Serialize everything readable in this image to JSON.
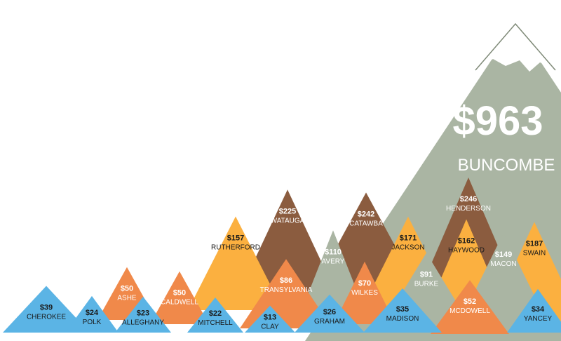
{
  "chart_data": {
    "type": "bar",
    "title": "",
    "xlabel": "",
    "ylabel": "",
    "categories": [
      "BUNCOMBE",
      "HENDERSON",
      "CATAWBA",
      "WATAUGA",
      "SWAIN",
      "JACKSON",
      "HAYWOOD",
      "RUTHERFORD",
      "MACON",
      "AVERY",
      "BURKE",
      "TRANSYLVANIA",
      "WILKES",
      "MCDOWELL",
      "ASHE",
      "CALDWELL",
      "CHEROKEE",
      "MADISON",
      "YANCEY",
      "GRAHAM",
      "POLK",
      "ALLEGHANY",
      "MITCHELL",
      "CLAY"
    ],
    "values": [
      963,
      246,
      242,
      225,
      187,
      171,
      162,
      157,
      149,
      110,
      91,
      86,
      70,
      52,
      50,
      50,
      39,
      35,
      34,
      26,
      24,
      23,
      22,
      13
    ],
    "value_labels": [
      "$963",
      "$246",
      "$242",
      "$225",
      "$187",
      "$171",
      "$162",
      "$157",
      "$149",
      "$110",
      "$91",
      "$86",
      "$70",
      "$52",
      "$50",
      "$50",
      "$39",
      "$35",
      "$34",
      "$26",
      "$24",
      "$23",
      "$22",
      "$13"
    ],
    "colors": {
      "gray": "#aab5a3",
      "brown": "#8b5c3f",
      "yellow": "#fbb040",
      "orange": "#f0894a",
      "blue": "#5bb4e5",
      "snow": "#ffffff",
      "dark_text": "#1a1a1a",
      "light_text": "#ffffff"
    }
  }
}
